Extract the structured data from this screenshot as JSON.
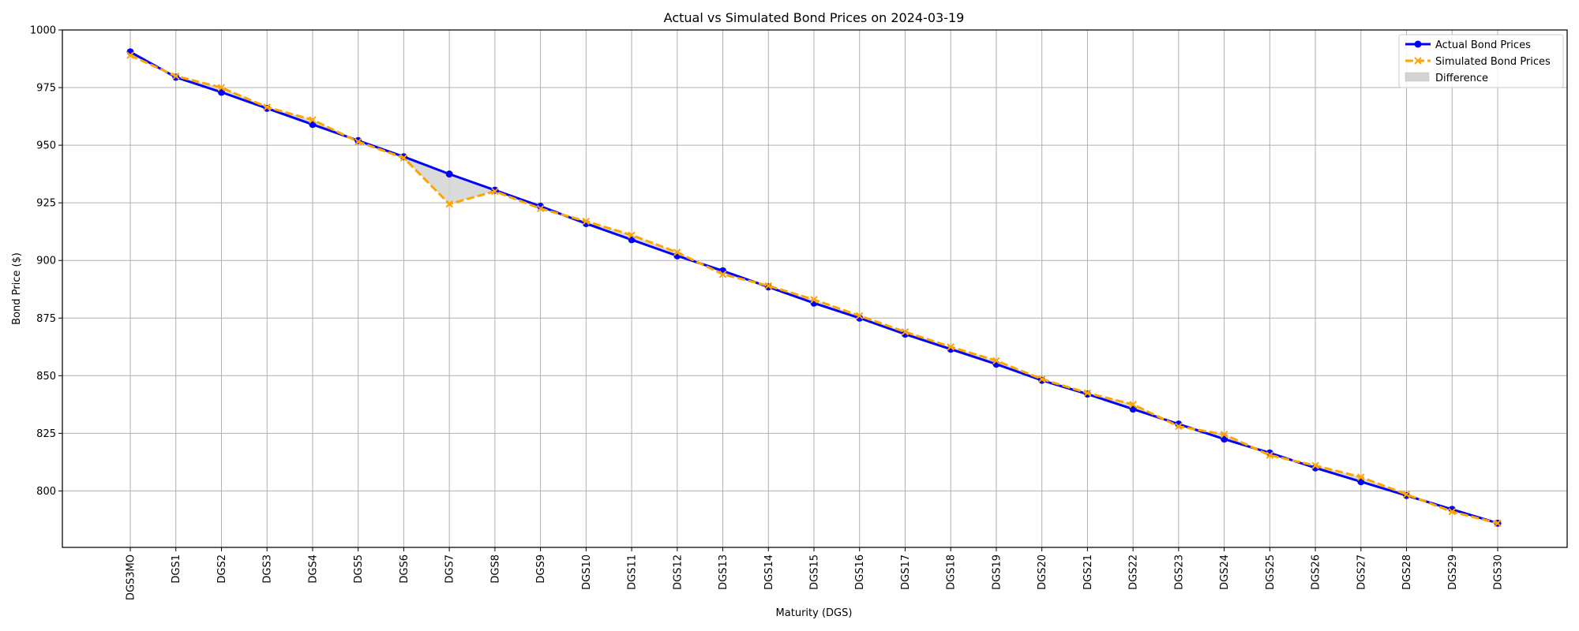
{
  "chart_data": {
    "type": "line",
    "title": "Actual vs Simulated Bond Prices on 2024-03-19",
    "xlabel": "Maturity (DGS)",
    "ylabel": "Bond Price ($)",
    "categories": [
      "DGS3MO",
      "DGS1",
      "DGS2",
      "DGS3",
      "DGS4",
      "DGS5",
      "DGS6",
      "DGS7",
      "DGS8",
      "DGS9",
      "DGS10",
      "DGS11",
      "DGS12",
      "DGS13",
      "DGS14",
      "DGS15",
      "DGS16",
      "DGS17",
      "DGS18",
      "DGS19",
      "DGS20",
      "DGS21",
      "DGS22",
      "DGS23",
      "DGS24",
      "DGS25",
      "DGS26",
      "DGS27",
      "DGS28",
      "DGS29",
      "DGS30"
    ],
    "ylim": [
      775.5,
      1000
    ],
    "yticks": [
      800,
      825,
      850,
      875,
      900,
      925,
      950,
      975,
      1000
    ],
    "grid": true,
    "legend_position": "top-right",
    "series": [
      {
        "name": "Actual Bond Prices",
        "color": "#0000ff",
        "marker": "circle",
        "line_style": "solid",
        "values": [
          990.5,
          979.5,
          973.0,
          966.0,
          959.0,
          952.0,
          945.0,
          937.5,
          930.5,
          923.5,
          916.0,
          909.0,
          902.0,
          895.5,
          888.5,
          881.5,
          875.0,
          868.0,
          861.5,
          855.0,
          848.0,
          842.0,
          835.5,
          829.0,
          822.5,
          816.5,
          810.0,
          804.0,
          798.0,
          792.0,
          786.0
        ]
      },
      {
        "name": "Simulated Bond Prices",
        "color": "#ffa500",
        "marker": "x",
        "line_style": "dashed",
        "values": [
          989.0,
          980.0,
          975.0,
          966.5,
          961.0,
          951.5,
          944.5,
          924.5,
          930.0,
          922.5,
          917.0,
          911.0,
          903.5,
          894.0,
          889.0,
          883.0,
          876.0,
          869.0,
          862.5,
          856.5,
          848.5,
          842.5,
          837.5,
          828.0,
          824.5,
          815.5,
          811.0,
          806.0,
          798.5,
          791.0,
          786.0
        ]
      }
    ],
    "fill_between": {
      "name": "Difference",
      "color": "#d3d3d3",
      "between": [
        "Actual Bond Prices",
        "Simulated Bond Prices"
      ]
    }
  }
}
